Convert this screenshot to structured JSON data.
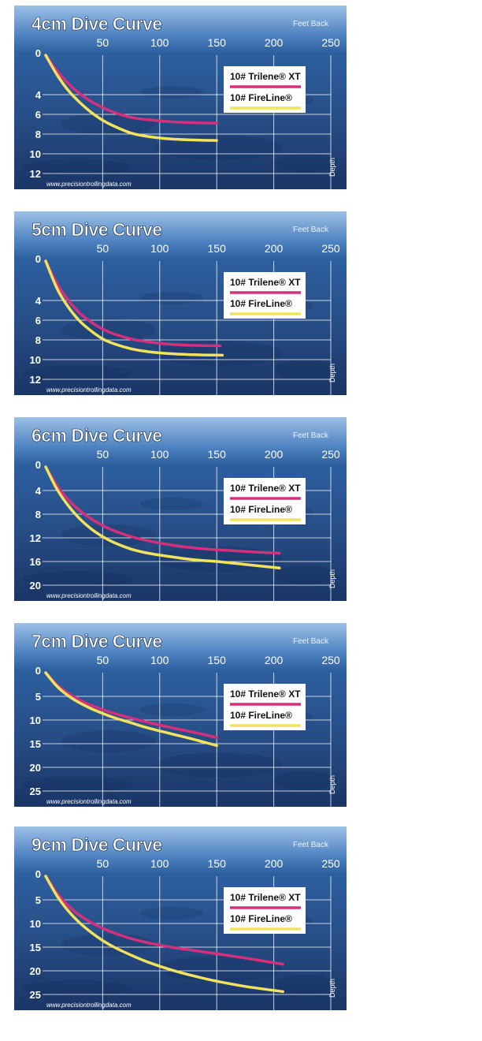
{
  "colors": {
    "trilene": "#d4307c",
    "fireline": "#f3e25c"
  },
  "chart_data": [
    {
      "type": "line",
      "title": "4cm Dive Curve",
      "xlabel": "Feet Back",
      "ylabel": "Depth",
      "website": "www.precisiontrollingdata.com",
      "xticks": [
        50,
        100,
        150,
        200,
        250
      ],
      "yticks": [
        0,
        4,
        6,
        8,
        10,
        12
      ],
      "xlim": [
        0,
        250
      ],
      "ylim": [
        0,
        12
      ],
      "series": [
        {
          "name": "10# Trilene® XT",
          "color": "#d4307c",
          "x": [
            0,
            10,
            20,
            30,
            40,
            50,
            60,
            75,
            90,
            110,
            130,
            150
          ],
          "y": [
            0,
            1.6,
            2.9,
            3.9,
            4.7,
            5.3,
            5.8,
            6.3,
            6.55,
            6.75,
            6.85,
            6.9
          ]
        },
        {
          "name": "10# FireLine®",
          "color": "#f3e25c",
          "x": [
            0,
            10,
            20,
            30,
            40,
            50,
            60,
            75,
            90,
            110,
            130,
            150
          ],
          "y": [
            0,
            2.0,
            3.6,
            4.8,
            5.8,
            6.6,
            7.2,
            7.9,
            8.25,
            8.5,
            8.6,
            8.65
          ]
        }
      ]
    },
    {
      "type": "line",
      "title": "5cm Dive Curve",
      "xlabel": "Feet Back",
      "ylabel": "Depth",
      "website": "www.precisiontrollingdata.com",
      "xticks": [
        50,
        100,
        150,
        200,
        250
      ],
      "yticks": [
        0,
        4,
        6,
        8,
        10,
        12
      ],
      "xlim": [
        0,
        250
      ],
      "ylim": [
        0,
        12
      ],
      "series": [
        {
          "name": "10# Trilene® XT",
          "color": "#d4307c",
          "x": [
            0,
            10,
            20,
            30,
            40,
            50,
            60,
            75,
            90,
            110,
            130,
            153
          ],
          "y": [
            0,
            2.3,
            4.0,
            5.3,
            6.2,
            6.9,
            7.4,
            7.9,
            8.2,
            8.45,
            8.55,
            8.6
          ]
        },
        {
          "name": "10# FireLine®",
          "color": "#f3e25c",
          "x": [
            0,
            10,
            20,
            30,
            40,
            50,
            60,
            75,
            90,
            110,
            130,
            155
          ],
          "y": [
            0,
            2.8,
            4.7,
            6.1,
            7.1,
            7.9,
            8.4,
            8.9,
            9.2,
            9.4,
            9.5,
            9.55
          ]
        }
      ]
    },
    {
      "type": "line",
      "title": "6cm Dive Curve",
      "xlabel": "Feet Back",
      "ylabel": "Depth",
      "website": "www.precisiontrollingdata.com",
      "xticks": [
        50,
        100,
        150,
        200,
        250
      ],
      "yticks": [
        0,
        4,
        8,
        12,
        16,
        20
      ],
      "xlim": [
        0,
        250
      ],
      "ylim": [
        0,
        20
      ],
      "series": [
        {
          "name": "10# Trilene® XT",
          "color": "#d4307c",
          "x": [
            0,
            10,
            20,
            30,
            40,
            50,
            60,
            75,
            90,
            110,
            130,
            150,
            175,
            205
          ],
          "y": [
            0,
            3.2,
            5.6,
            7.4,
            8.8,
            9.9,
            10.8,
            11.8,
            12.5,
            13.2,
            13.7,
            14.0,
            14.3,
            14.6
          ]
        },
        {
          "name": "10# FireLine®",
          "color": "#f3e25c",
          "x": [
            0,
            10,
            20,
            30,
            40,
            50,
            60,
            75,
            90,
            110,
            130,
            150,
            175,
            205
          ],
          "y": [
            0,
            3.8,
            6.6,
            8.8,
            10.5,
            11.8,
            12.8,
            13.9,
            14.6,
            15.2,
            15.7,
            16.0,
            16.5,
            17.1
          ]
        }
      ]
    },
    {
      "type": "line",
      "title": "7cm Dive Curve",
      "xlabel": "Feet Back",
      "ylabel": "Depth",
      "website": "www.precisiontrollingdata.com",
      "xticks": [
        50,
        100,
        150,
        200,
        250
      ],
      "yticks": [
        0,
        5,
        10,
        15,
        20,
        25
      ],
      "xlim": [
        0,
        250
      ],
      "ylim": [
        0,
        25
      ],
      "series": [
        {
          "name": "10# Trilene® XT",
          "color": "#d4307c",
          "x": [
            0,
            10,
            20,
            30,
            40,
            50,
            60,
            75,
            90,
            110,
            130,
            150
          ],
          "y": [
            0,
            2.6,
            4.4,
            5.8,
            6.9,
            7.8,
            8.6,
            9.6,
            10.5,
            11.6,
            12.6,
            13.7
          ]
        },
        {
          "name": "10# FireLine®",
          "color": "#f3e25c",
          "x": [
            0,
            10,
            20,
            30,
            40,
            50,
            60,
            75,
            90,
            110,
            130,
            150
          ],
          "y": [
            0,
            2.9,
            4.9,
            6.4,
            7.6,
            8.6,
            9.5,
            10.6,
            11.7,
            12.9,
            14.1,
            15.4
          ]
        }
      ]
    },
    {
      "type": "line",
      "title": "9cm Dive Curve",
      "xlabel": "Feet Back",
      "ylabel": "Depth",
      "website": "www.precisiontrollingdata.com",
      "xticks": [
        50,
        100,
        150,
        200,
        250
      ],
      "yticks": [
        0,
        5,
        10,
        15,
        20,
        25
      ],
      "xlim": [
        0,
        250
      ],
      "ylim": [
        0,
        25
      ],
      "series": [
        {
          "name": "10# Trilene® XT",
          "color": "#d4307c",
          "x": [
            0,
            10,
            20,
            30,
            40,
            50,
            60,
            75,
            90,
            110,
            130,
            150,
            175,
            208
          ],
          "y": [
            0,
            3.6,
            6.3,
            8.3,
            9.8,
            11.0,
            12.0,
            13.2,
            14.1,
            15.0,
            15.7,
            16.4,
            17.3,
            18.6
          ]
        },
        {
          "name": "10# FireLine®",
          "color": "#f3e25c",
          "x": [
            0,
            10,
            20,
            30,
            40,
            50,
            60,
            75,
            90,
            110,
            130,
            150,
            175,
            208
          ],
          "y": [
            0,
            4.2,
            7.4,
            9.9,
            11.9,
            13.6,
            15.0,
            16.7,
            18.2,
            19.8,
            21.1,
            22.2,
            23.3,
            24.4
          ]
        }
      ]
    }
  ]
}
